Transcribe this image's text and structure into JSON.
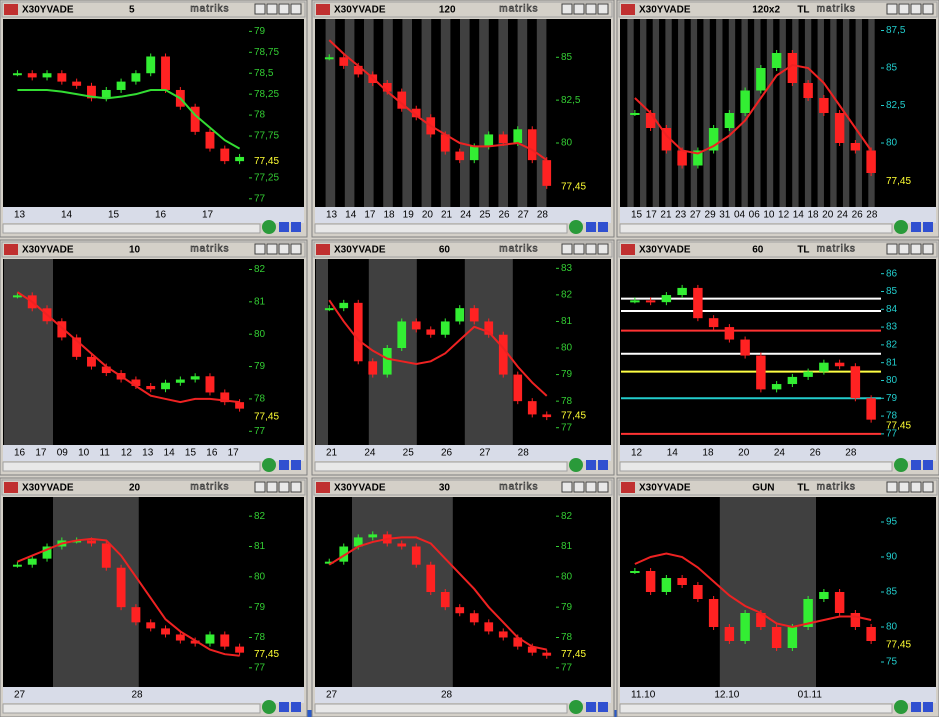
{
  "panels": [
    {
      "type": "candle",
      "symbol": "X30YVADE",
      "period": "5",
      "brand": "matriks",
      "axis_color": "#33cc33",
      "ma_color": "#33dd33",
      "ylim": [
        76.95,
        79.1
      ],
      "yticks": [
        79,
        {
          "value": 78.75,
          "label": "78,75"
        },
        {
          "value": 78.5,
          "label": "78,5"
        },
        {
          "value": 78.25,
          "label": "78,25"
        },
        78,
        {
          "value": 77.75,
          "label": "77,75"
        },
        {
          "value": 77.25,
          "label": "77,25"
        },
        77
      ],
      "last": {
        "value": 77.45,
        "label": "77,45"
      },
      "xlabels": [
        "13",
        "14",
        "15",
        "16",
        "17"
      ],
      "price": [
        78.5,
        78.45,
        78.5,
        78.4,
        78.35,
        78.2,
        78.3,
        78.4,
        78.5,
        78.7,
        78.3,
        78.1,
        77.8,
        77.6,
        77.45,
        77.5
      ],
      "ma": [
        78.3,
        78.3,
        78.3,
        78.28,
        78.25,
        78.22,
        78.2,
        78.22,
        78.25,
        78.3,
        78.3,
        78.2,
        78.0,
        77.85,
        77.7,
        77.6
      ]
    },
    {
      "type": "candle",
      "symbol": "X30YVADE",
      "period": "120",
      "brand": "matriks",
      "axis_color": "#33cc33",
      "ma_color": "#ee2222",
      "ylim": [
        76.5,
        87
      ],
      "yticks": [
        85,
        {
          "value": 82.5,
          "label": "82,5"
        },
        80
      ],
      "last": {
        "value": 77.45,
        "label": "77,45"
      },
      "xlabels": [
        "13",
        "14",
        "17",
        "18",
        "19",
        "20",
        "21",
        "24",
        "25",
        "26",
        "27",
        "28"
      ],
      "price": [
        85,
        84.5,
        84,
        83.5,
        83,
        82,
        81.5,
        80.5,
        79.5,
        79,
        79.8,
        80.5,
        80,
        80.8,
        79,
        77.5
      ],
      "ma": [
        86,
        85.2,
        84.5,
        83.8,
        83,
        82.3,
        81.6,
        81,
        80.5,
        80,
        79.8,
        79.8,
        79.9,
        80,
        79.6,
        79
      ]
    },
    {
      "type": "candle",
      "symbol": "X30YVADE",
      "period": "120x2",
      "unit": "TL",
      "brand": "matriks",
      "axis_color": "#22cccc",
      "ma_color": "#ee2222",
      "ylim": [
        76,
        88
      ],
      "yticks": [
        {
          "value": 87.5,
          "label": "87,5"
        },
        85,
        {
          "value": 82.5,
          "label": "82,5"
        },
        80
      ],
      "last": {
        "value": 77.45,
        "label": "77,45"
      },
      "xlabels": [
        "15",
        "17",
        "21",
        "23",
        "27",
        "29",
        "31",
        "04",
        "06",
        "10",
        "12",
        "14",
        "18",
        "20",
        "24",
        "26",
        "28"
      ],
      "price": [
        82,
        81,
        79.5,
        78.5,
        79.5,
        81,
        82,
        83.5,
        85,
        86,
        84,
        83,
        82,
        80,
        79.5,
        78
      ],
      "ma": [
        83,
        82,
        80.5,
        79.5,
        79.3,
        79.8,
        80.5,
        81.5,
        83,
        84.5,
        85.2,
        85,
        84,
        82.5,
        81,
        79.5
      ]
    },
    {
      "type": "candle",
      "symbol": "X30YVADE",
      "period": "10",
      "brand": "matriks",
      "axis_color": "#33cc33",
      "ma_color": "#ee2222",
      "ylim": [
        76.7,
        82.2
      ],
      "yticks": [
        82,
        81,
        80,
        79,
        78,
        77
      ],
      "last": {
        "value": 77.45,
        "label": "77,45"
      },
      "xlabels": [
        "16",
        "17",
        "09",
        "10",
        "11",
        "12",
        "13",
        "14",
        "15",
        "16",
        "17"
      ],
      "price": [
        81.2,
        80.8,
        80.4,
        79.9,
        79.3,
        79,
        78.8,
        78.6,
        78.4,
        78.3,
        78.5,
        78.6,
        78.7,
        78.2,
        77.9,
        77.7
      ],
      "ma": [
        81.3,
        81,
        80.6,
        80.2,
        79.8,
        79.4,
        79,
        78.7,
        78.4,
        78.1,
        78,
        77.9,
        78,
        78,
        77.95,
        77.9
      ]
    },
    {
      "type": "candle",
      "symbol": "X30YVADE",
      "period": "60",
      "brand": "matriks",
      "axis_color": "#33cc33",
      "ma_color": "#ee2222",
      "ylim": [
        76.5,
        83.2
      ],
      "yticks": [
        83,
        82,
        81,
        80,
        79,
        78,
        77
      ],
      "last": {
        "value": 77.45,
        "label": "77,45"
      },
      "xlabels": [
        "21",
        "24",
        "25",
        "26",
        "27",
        "28"
      ],
      "price": [
        81.5,
        81.7,
        79.5,
        79,
        80,
        81,
        80.7,
        80.5,
        81,
        81.5,
        81,
        80.5,
        79,
        78,
        77.5,
        77.4
      ],
      "ma": [
        81.8,
        81,
        80.3,
        79.9,
        79.6,
        79.5,
        79.4,
        79.5,
        79.8,
        80.3,
        80.8,
        80.6,
        80,
        79.3,
        78.7,
        78.2
      ]
    },
    {
      "type": "candle",
      "symbol": "X30YVADE",
      "period": "60",
      "unit": "TL",
      "brand": "matriks",
      "axis_color": "#22cccc",
      "ylim": [
        76.6,
        86.6
      ],
      "yticks": [
        86,
        85,
        84,
        83,
        82,
        81,
        80,
        79,
        78,
        77
      ],
      "last": {
        "value": 77.45,
        "label": "77,45"
      },
      "xlabels": [
        "12",
        "14",
        "18",
        "20",
        "24",
        "26",
        "28"
      ],
      "price": [
        84.5,
        84.4,
        84.8,
        85.2,
        83.5,
        83,
        82.3,
        81.4,
        79.5,
        79.8,
        80.2,
        80.5,
        81,
        80.8,
        79,
        77.8
      ],
      "levels": [
        {
          "value": 84.6,
          "color": "#ffffff"
        },
        {
          "value": 83.9,
          "color": "#ffffff"
        },
        {
          "value": 82.8,
          "color": "#ff3333"
        },
        {
          "value": 81.5,
          "color": "#ffffff"
        },
        {
          "value": 80.5,
          "color": "#ffff44"
        },
        {
          "value": 79,
          "color": "#22cccc"
        },
        {
          "value": 77,
          "color": "#ff3333"
        }
      ]
    },
    {
      "type": "candle",
      "symbol": "X30YVADE",
      "period": "20",
      "brand": "matriks",
      "axis_color": "#33cc33",
      "ma_color": "#ee2222",
      "ylim": [
        76.5,
        82.5
      ],
      "yticks": [
        82,
        81,
        80,
        79,
        78,
        77
      ],
      "last": {
        "value": 77.45,
        "label": "77,45"
      },
      "xlabels": [
        "27",
        "28"
      ],
      "price": [
        80.4,
        80.6,
        81,
        81.2,
        81.2,
        81.1,
        80.3,
        79,
        78.5,
        78.3,
        78.1,
        77.9,
        77.8,
        78.1,
        77.7,
        77.5
      ],
      "ma": [
        80.5,
        80.7,
        80.9,
        81.1,
        81.2,
        81.25,
        81.2,
        80.7,
        80,
        79.3,
        78.6,
        78.2,
        77.9,
        77.6,
        77.45,
        77.4
      ]
    },
    {
      "type": "candle",
      "symbol": "X30YVADE",
      "period": "30",
      "brand": "matriks",
      "axis_color": "#33cc33",
      "ma_color": "#ee2222",
      "ylim": [
        76.5,
        82.5
      ],
      "yticks": [
        82,
        81,
        80,
        79,
        78,
        77
      ],
      "last": {
        "value": 77.45,
        "label": "77,45"
      },
      "xlabels": [
        "27",
        "28"
      ],
      "price": [
        80.5,
        81,
        81.3,
        81.4,
        81.1,
        81,
        80.4,
        79.5,
        79,
        78.8,
        78.5,
        78.2,
        78,
        77.7,
        77.5,
        77.4
      ],
      "ma": [
        80.4,
        80.7,
        81,
        81.15,
        81.25,
        81.3,
        81.3,
        81.1,
        80.6,
        80.1,
        79.6,
        79,
        78.5,
        78,
        77.7,
        77.6
      ]
    },
    {
      "type": "candle",
      "symbol": "X30YVADE",
      "period": "GUN",
      "unit": "TL",
      "brand": "matriks",
      "axis_color": "#22cccc",
      "ma_color": "#ee2222",
      "ylim": [
        72,
        98
      ],
      "yticks": [
        95,
        90,
        85,
        80,
        75
      ],
      "last": {
        "value": 77.45,
        "label": "77,45"
      },
      "xlabels": [
        "11.10",
        "12.10",
        "01.11"
      ],
      "price": [
        88,
        85,
        87,
        86,
        84,
        80,
        78,
        82,
        80,
        77,
        80,
        84,
        85,
        82,
        80,
        78
      ],
      "ma": [
        89,
        90,
        90.5,
        90,
        88.5,
        86.5,
        84.5,
        83,
        82,
        80.5,
        80,
        80.5,
        81,
        81.5,
        81.5,
        81
      ]
    }
  ]
}
